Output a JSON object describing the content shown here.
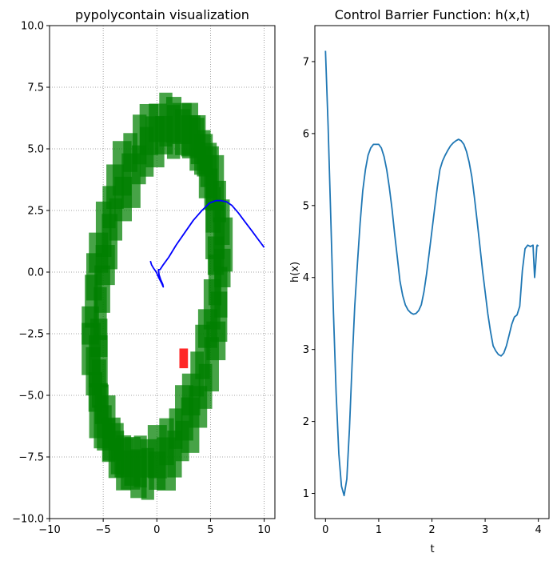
{
  "chart_data": [
    {
      "type": "line",
      "title": "pypolycontain visualization",
      "xlabel": "",
      "ylabel": "",
      "xlim": [
        -10,
        11
      ],
      "ylim": [
        -10,
        10
      ],
      "x_ticks": [
        -10,
        -5,
        0,
        5,
        10
      ],
      "x_tick_labels": [
        "−10",
        "−5",
        "0",
        "5",
        "10"
      ],
      "y_ticks": [
        -10,
        -7.5,
        -5,
        -2.5,
        0,
        2.5,
        5,
        7.5,
        10
      ],
      "y_tick_labels": [
        "−10.0",
        "−7.5",
        "−5.0",
        "−2.5",
        "0.0",
        "2.5",
        "5.0",
        "7.5",
        "10.0"
      ],
      "grid": true,
      "grid_style": "dotted",
      "colors": {
        "boxes": "#008000",
        "trajectory": "#0000ff",
        "current_box": "#ff0000"
      },
      "polytope_region": {
        "shape": "tilted elliptical ring of axis-aligned green boxes",
        "center": [
          0,
          -1.0
        ],
        "semi_axis_major": 7.35,
        "semi_axis_minor": 5.3,
        "tilt_deg": 62,
        "count": 44
      },
      "current_box": {
        "x": [
          2.1,
          2.9
        ],
        "y": [
          -3.9,
          -3.1
        ]
      },
      "series": [
        {
          "x": [
            -0.6,
            -0.5,
            -0.3,
            -0.05,
            0.15,
            0.45,
            0.6,
            0.55,
            0.35,
            0.2,
            0.15,
            0.3,
            0.6,
            1.1,
            1.8,
            2.6,
            3.4,
            4.2,
            4.9,
            5.5,
            6.0,
            6.5,
            7.0,
            7.6,
            8.2,
            8.8,
            9.4,
            10.0
          ],
          "y": [
            0.45,
            0.3,
            0.15,
            0.0,
            -0.2,
            -0.45,
            -0.6,
            -0.5,
            -0.3,
            -0.1,
            0.1,
            0.1,
            0.3,
            0.6,
            1.1,
            1.6,
            2.1,
            2.5,
            2.8,
            2.9,
            2.9,
            2.85,
            2.7,
            2.4,
            2.05,
            1.7,
            1.35,
            1.0
          ]
        }
      ]
    },
    {
      "type": "line",
      "title": "Control Barrier Function: h(x,t)",
      "xlabel": "t",
      "ylabel": "h(x)",
      "xlim": [
        -0.2,
        4.2
      ],
      "ylim": [
        0.65,
        7.5
      ],
      "x_ticks": [
        0,
        1,
        2,
        3,
        4
      ],
      "x_tick_labels": [
        "0",
        "1",
        "2",
        "3",
        "4"
      ],
      "y_ticks": [
        1,
        2,
        3,
        4,
        5,
        6,
        7
      ],
      "y_tick_labels": [
        "1",
        "2",
        "3",
        "4",
        "5",
        "6",
        "7"
      ],
      "grid": false,
      "colors": {
        "line": "#1f77b4"
      },
      "series": [
        {
          "x": [
            0,
            0.05,
            0.1,
            0.15,
            0.2,
            0.25,
            0.3,
            0.35,
            0.4,
            0.45,
            0.5,
            0.55,
            0.6,
            0.65,
            0.7,
            0.75,
            0.8,
            0.85,
            0.9,
            0.95,
            1.0,
            1.05,
            1.1,
            1.15,
            1.2,
            1.25,
            1.3,
            1.35,
            1.4,
            1.45,
            1.5,
            1.55,
            1.6,
            1.65,
            1.7,
            1.75,
            1.8,
            1.85,
            1.9,
            1.95,
            2.0,
            2.05,
            2.1,
            2.15,
            2.2,
            2.25,
            2.3,
            2.35,
            2.4,
            2.45,
            2.5,
            2.55,
            2.6,
            2.65,
            2.7,
            2.75,
            2.8,
            2.85,
            2.9,
            2.95,
            3.0,
            3.05,
            3.1,
            3.15,
            3.2,
            3.25,
            3.3,
            3.35,
            3.4,
            3.45,
            3.5,
            3.55,
            3.6,
            3.65,
            3.7,
            3.75,
            3.8,
            3.85,
            3.9,
            3.93,
            3.95,
            3.97,
            3.98,
            3.99,
            4.0
          ],
          "y": [
            7.15,
            6.1,
            4.8,
            3.5,
            2.4,
            1.55,
            1.1,
            0.97,
            1.2,
            1.9,
            2.8,
            3.6,
            4.2,
            4.75,
            5.2,
            5.5,
            5.7,
            5.8,
            5.85,
            5.85,
            5.85,
            5.8,
            5.68,
            5.5,
            5.25,
            4.95,
            4.6,
            4.28,
            3.95,
            3.75,
            3.62,
            3.55,
            3.51,
            3.49,
            3.5,
            3.54,
            3.62,
            3.8,
            4.05,
            4.35,
            4.65,
            4.95,
            5.25,
            5.5,
            5.62,
            5.7,
            5.77,
            5.83,
            5.87,
            5.9,
            5.92,
            5.9,
            5.85,
            5.75,
            5.6,
            5.4,
            5.1,
            4.78,
            4.45,
            4.1,
            3.8,
            3.5,
            3.25,
            3.05,
            2.98,
            2.93,
            2.91,
            2.95,
            3.05,
            3.2,
            3.35,
            3.45,
            3.48,
            3.6,
            4.1,
            4.4,
            4.45,
            4.43,
            4.45,
            4.0,
            4.2,
            4.43,
            4.45,
            4.44,
            4.45
          ]
        }
      ]
    }
  ]
}
